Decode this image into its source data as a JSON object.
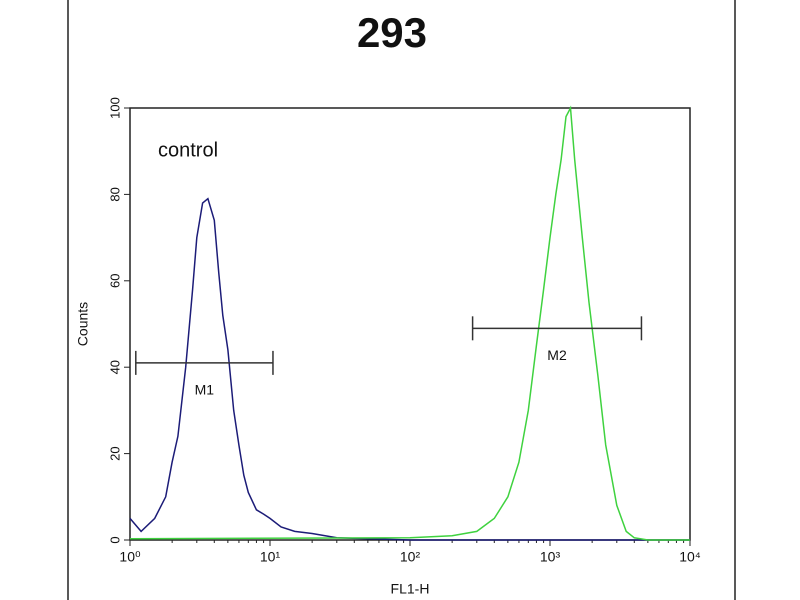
{
  "chart_data": {
    "type": "histogram-overlay",
    "title": "293",
    "x_label": "FL1-H",
    "y_label": "Counts",
    "x_scale": "log",
    "xlim": [
      1,
      10000
    ],
    "ylim": [
      0,
      100
    ],
    "xticks": [
      {
        "value": 1,
        "label": "10⁰"
      },
      {
        "value": 10,
        "label": "10¹"
      },
      {
        "value": 100,
        "label": "10²"
      },
      {
        "value": 1000,
        "label": "10³"
      },
      {
        "value": 10000,
        "label": "10⁴"
      }
    ],
    "yticks": [
      0,
      20,
      40,
      60,
      80,
      100
    ],
    "series": [
      {
        "color": "#1c1c78",
        "x": [
          1,
          1.2,
          1.5,
          1.8,
          2.0,
          2.2,
          2.5,
          2.8,
          3.0,
          3.3,
          3.6,
          4.0,
          4.3,
          4.6,
          5.0,
          5.5,
          6.0,
          6.5,
          7.0,
          8.0,
          9.0,
          10,
          12,
          15,
          20,
          30,
          50,
          100,
          1000,
          10000
        ],
        "values": [
          5,
          2,
          5,
          10,
          18,
          24,
          40,
          58,
          70,
          78,
          79,
          74,
          62,
          52,
          44,
          30,
          22,
          15,
          11,
          7,
          6,
          5,
          3,
          2,
          1.5,
          0.5,
          0.3,
          0,
          0,
          0
        ]
      },
      {
        "color": "#3fd23f",
        "x": [
          1,
          100,
          200,
          300,
          400,
          500,
          600,
          700,
          800,
          900,
          1000,
          1100,
          1200,
          1300,
          1400,
          1500,
          1700,
          1900,
          2200,
          2500,
          3000,
          3500,
          4000,
          5000,
          10000
        ],
        "values": [
          0.3,
          0.5,
          1,
          2,
          5,
          10,
          18,
          30,
          45,
          58,
          70,
          80,
          88,
          98,
          100,
          88,
          70,
          55,
          38,
          22,
          8,
          2,
          0.5,
          0,
          0
        ]
      }
    ],
    "markers": [
      {
        "label": "M1",
        "range": [
          1.1,
          10.5
        ],
        "y": 41
      },
      {
        "label": "M2",
        "range": [
          280,
          4500
        ],
        "y": 49
      }
    ],
    "annotation": "control"
  }
}
